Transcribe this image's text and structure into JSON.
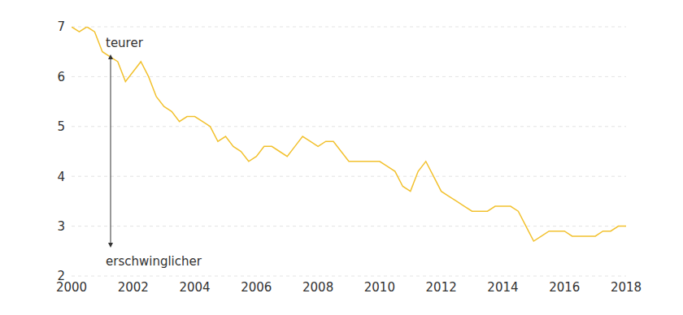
{
  "chart_data": {
    "type": "line",
    "x": [
      2000,
      2000.25,
      2000.5,
      2000.75,
      2001,
      2001.25,
      2001.5,
      2001.75,
      2002,
      2002.25,
      2002.5,
      2002.75,
      2003,
      2003.25,
      2003.5,
      2003.75,
      2004,
      2004.25,
      2004.5,
      2004.75,
      2005,
      2005.25,
      2005.5,
      2005.75,
      2006,
      2006.25,
      2006.5,
      2006.75,
      2007,
      2007.25,
      2007.5,
      2007.75,
      2008,
      2008.25,
      2008.5,
      2008.75,
      2009,
      2009.25,
      2009.5,
      2009.75,
      2010,
      2010.25,
      2010.5,
      2010.75,
      2011,
      2011.25,
      2011.5,
      2011.75,
      2012,
      2012.25,
      2012.5,
      2012.75,
      2013,
      2013.25,
      2013.5,
      2013.75,
      2014,
      2014.25,
      2014.5,
      2014.75,
      2015,
      2015.25,
      2015.5,
      2015.75,
      2016,
      2016.25,
      2016.5,
      2016.75,
      2017,
      2017.25,
      2017.5,
      2017.75,
      2018
    ],
    "values": [
      7.0,
      6.9,
      7.0,
      6.9,
      6.5,
      6.4,
      6.3,
      5.9,
      6.1,
      6.3,
      6.0,
      5.6,
      5.4,
      5.3,
      5.1,
      5.2,
      5.2,
      5.1,
      5.0,
      4.7,
      4.8,
      4.6,
      4.5,
      4.3,
      4.4,
      4.6,
      4.6,
      4.5,
      4.4,
      4.6,
      4.8,
      4.7,
      4.6,
      4.7,
      4.7,
      4.5,
      4.3,
      4.3,
      4.3,
      4.3,
      4.3,
      4.2,
      4.1,
      3.8,
      3.7,
      4.1,
      4.3,
      4.0,
      3.7,
      3.6,
      3.5,
      3.4,
      3.3,
      3.3,
      3.3,
      3.4,
      3.4,
      3.4,
      3.3,
      3.0,
      2.7,
      2.8,
      2.9,
      2.9,
      2.9,
      2.8,
      2.8,
      2.8,
      2.8,
      2.9,
      2.9,
      3.0,
      3.0
    ],
    "color": "#f2c12e",
    "xlim": [
      2000,
      2018
    ],
    "xticks": [
      2000,
      2002,
      2004,
      2006,
      2008,
      2010,
      2012,
      2014,
      2016,
      2018
    ],
    "ylim": [
      2,
      7
    ],
    "yticks": [
      2,
      3,
      4,
      5,
      6,
      7
    ],
    "grid": true,
    "annotations": [
      "teurer",
      "erschwinglicher"
    ]
  }
}
